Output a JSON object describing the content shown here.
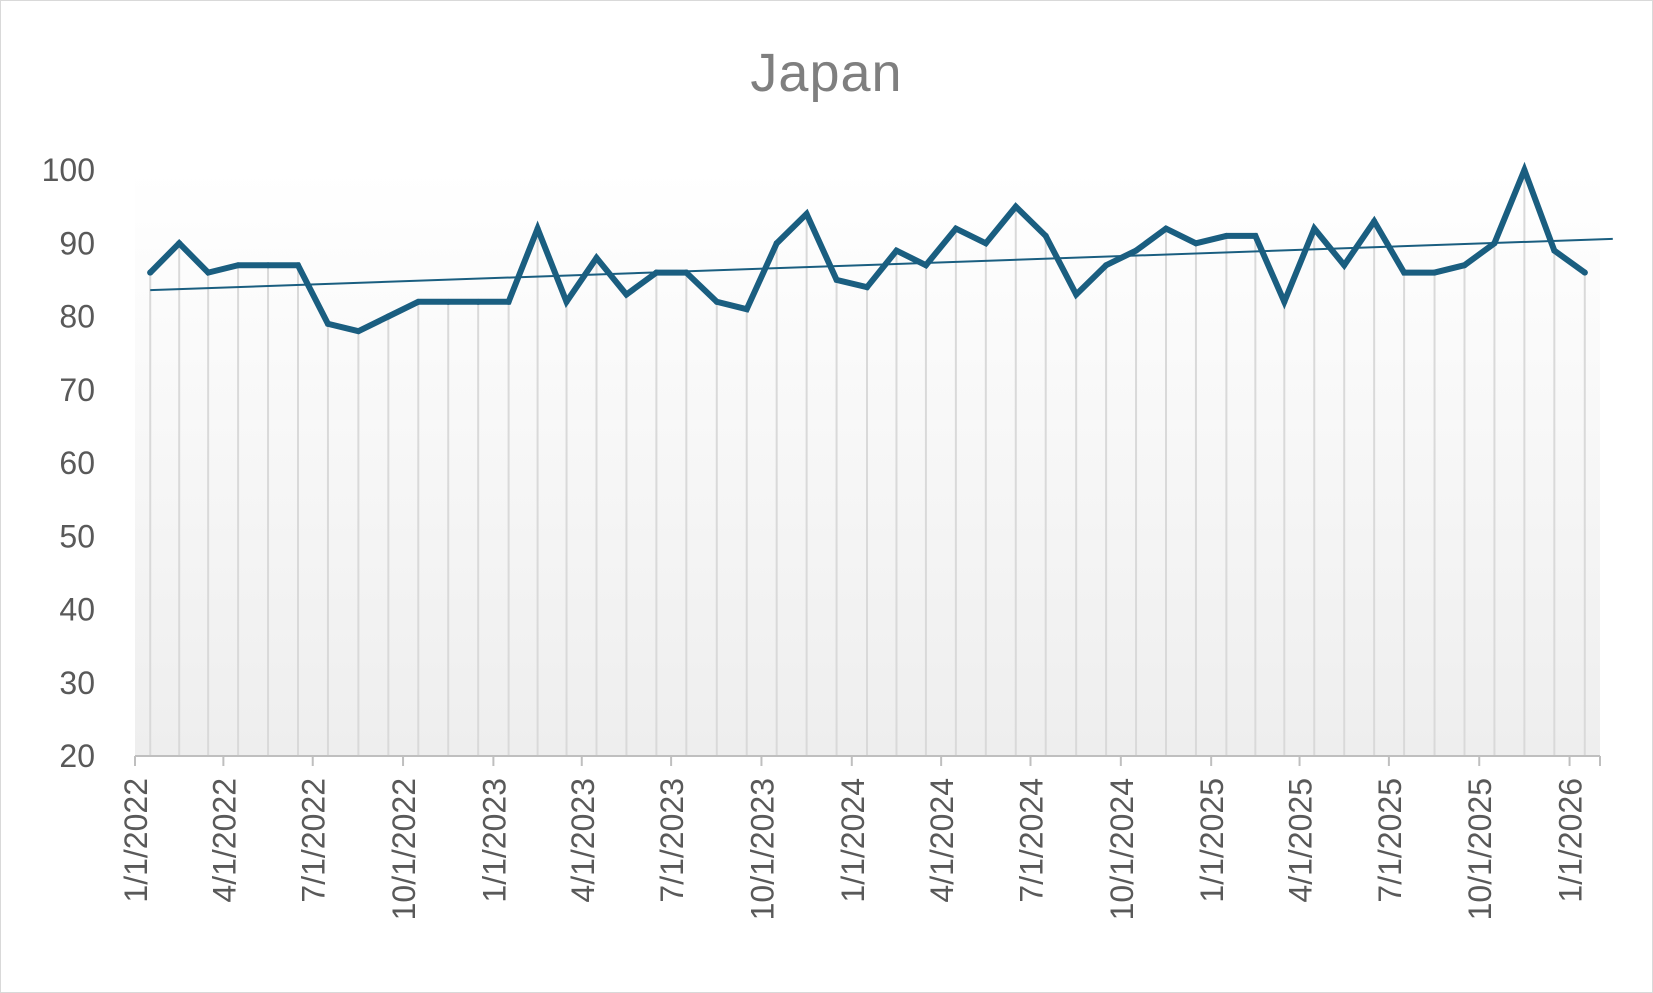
{
  "chart_data": {
    "type": "line",
    "title": "Japan",
    "xlabel": "",
    "ylabel": "",
    "ylim": [
      20,
      100
    ],
    "yticks": [
      20,
      30,
      40,
      50,
      60,
      70,
      80,
      90,
      100
    ],
    "x_tick_labels": [
      "1/1/2022",
      "4/1/2022",
      "7/1/2022",
      "10/1/2022",
      "1/1/2023",
      "4/1/2023",
      "7/1/2023",
      "10/1/2023",
      "1/1/2024",
      "4/1/2024",
      "7/1/2024",
      "10/1/2024",
      "1/1/2025",
      "4/1/2025",
      "7/1/2025",
      "10/1/2025",
      "1/1/2026"
    ],
    "x": [
      "2022-01-01",
      "2022-02-01",
      "2022-03-01",
      "2022-04-01",
      "2022-05-01",
      "2022-06-01",
      "2022-07-01",
      "2022-08-01",
      "2022-09-01",
      "2022-10-01",
      "2022-11-01",
      "2022-12-01",
      "2023-01-01",
      "2023-02-01",
      "2023-03-01",
      "2023-04-01",
      "2023-05-01",
      "2023-06-01",
      "2023-07-01",
      "2023-08-01",
      "2023-09-01",
      "2023-10-01",
      "2023-11-01",
      "2023-12-01",
      "2024-01-01",
      "2024-02-01",
      "2024-03-01",
      "2024-04-01",
      "2024-05-01",
      "2024-06-01",
      "2024-07-01",
      "2024-08-01",
      "2024-09-01",
      "2024-10-01",
      "2024-11-01",
      "2024-12-01",
      "2025-01-01",
      "2025-02-01",
      "2025-03-01",
      "2025-04-01",
      "2025-05-01",
      "2025-06-01",
      "2025-07-01",
      "2025-08-01",
      "2025-09-01",
      "2025-10-01",
      "2025-11-01",
      "2025-12-01",
      "2026-01-01"
    ],
    "series": [
      {
        "values": [
          86,
          90,
          86,
          87,
          87,
          87,
          79,
          78,
          80,
          82,
          82,
          82,
          82,
          92,
          82,
          88,
          83,
          86,
          86,
          82,
          81,
          90,
          94,
          85,
          84,
          89,
          87,
          92,
          90,
          95,
          91,
          83,
          87,
          89,
          92,
          90,
          91,
          91,
          82,
          92,
          87,
          93,
          86,
          86,
          87,
          90,
          100,
          89,
          86
        ],
        "color": "#1a5e80"
      }
    ],
    "trendline": {
      "type": "linear",
      "color": "#1a5e80",
      "start": 83.6,
      "end": 90.6
    },
    "drop_lines": true,
    "plot_background": "gradient white to light gray",
    "grid": false,
    "legend": "none"
  }
}
